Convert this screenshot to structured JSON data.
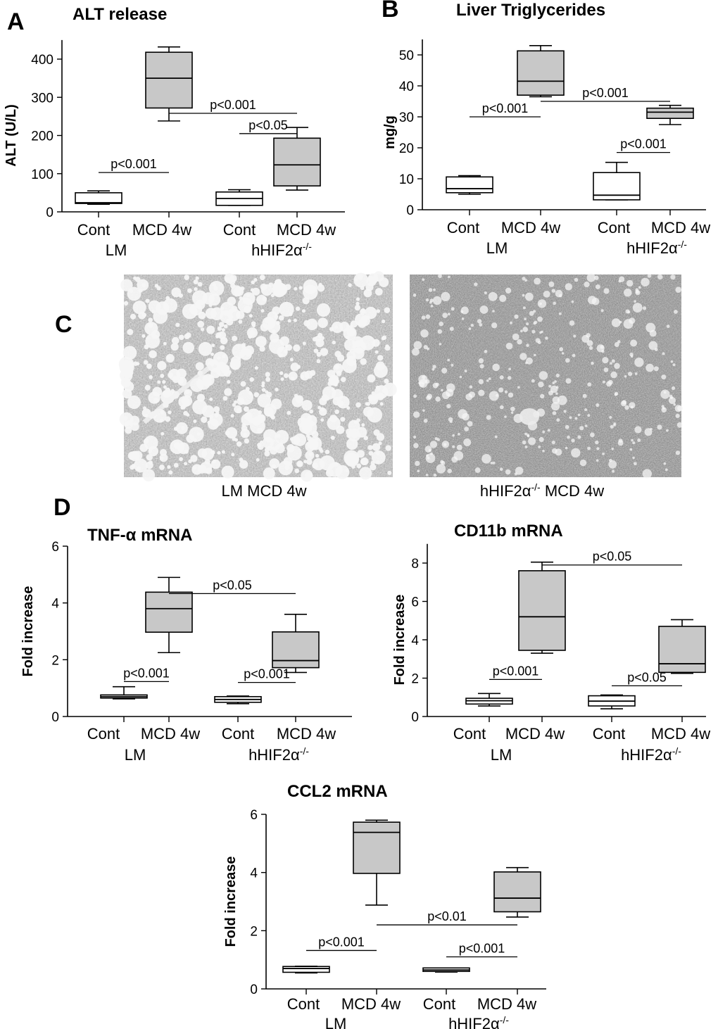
{
  "panel_labels": {
    "a": "A",
    "b": "B",
    "c": "C",
    "d": "D"
  },
  "micrographs": [
    {
      "caption": "LM MCD 4w"
    },
    {
      "caption": "hHIF2α-/- MCD 4w"
    }
  ],
  "chart_data": [
    {
      "type": "box",
      "title": "ALT release",
      "ylabel": "ALT (U/L)",
      "xlabel": "",
      "ylim": [
        0,
        450
      ],
      "yticks": [
        0,
        100,
        200,
        300,
        400
      ],
      "categories": [
        "Cont",
        "MCD 4w",
        "Cont",
        "MCD 4w"
      ],
      "groups": [
        "LM",
        "hHIF2α-/-"
      ],
      "boxes": [
        {
          "category": "Cont",
          "group": "LM",
          "fill": "#ffffff",
          "min": 20,
          "q1": 22,
          "median": 24,
          "q3": 50,
          "max": 55
        },
        {
          "category": "MCD 4w",
          "group": "LM",
          "fill": "#c8c8c8",
          "min": 238,
          "q1": 272,
          "median": 350,
          "q3": 418,
          "max": 432
        },
        {
          "category": "Cont",
          "group": "hHIF2α-/-",
          "fill": "#ffffff",
          "min": 17,
          "q1": 17,
          "median": 35,
          "q3": 52,
          "max": 58
        },
        {
          "category": "MCD 4w",
          "group": "hHIF2α-/-",
          "fill": "#c8c8c8",
          "min": 57,
          "q1": 68,
          "median": 123,
          "q3": 193,
          "max": 221
        }
      ],
      "annotations": [
        {
          "text": "p<0.001",
          "from": 0,
          "to": 1,
          "y": 103
        },
        {
          "text": "p<0.001",
          "from": 1,
          "to": 3,
          "y": 258
        },
        {
          "text": "p<0.05",
          "from": 2,
          "to": 3,
          "y": 205
        }
      ]
    },
    {
      "type": "box",
      "title": "Liver Triglycerides",
      "ylabel": "mg/g",
      "xlabel": "",
      "ylim": [
        0,
        55
      ],
      "yticks": [
        0,
        10,
        20,
        30,
        40,
        50
      ],
      "categories": [
        "Cont",
        "MCD 4w",
        "Cont",
        "MCD 4w"
      ],
      "groups": [
        "LM",
        "hHIF2α-/-"
      ],
      "boxes": [
        {
          "category": "Cont",
          "group": "LM",
          "fill": "#ffffff",
          "min": 5,
          "q1": 5.5,
          "median": 6.8,
          "q3": 10.6,
          "max": 11
        },
        {
          "category": "MCD 4w",
          "group": "LM",
          "fill": "#c8c8c8",
          "min": 36.5,
          "q1": 37,
          "median": 41.5,
          "q3": 51.3,
          "max": 53
        },
        {
          "category": "Cont",
          "group": "hHIF2α-/-",
          "fill": "#ffffff",
          "min": 3.2,
          "q1": 3.2,
          "median": 4.7,
          "q3": 12,
          "max": 15.3
        },
        {
          "category": "MCD 4w",
          "group": "hHIF2α-/-",
          "fill": "#c8c8c8",
          "min": 27.5,
          "q1": 29.5,
          "median": 31.5,
          "q3": 32.8,
          "max": 33.7
        }
      ],
      "annotations": [
        {
          "text": "p<0.001",
          "from": 0,
          "to": 1,
          "y": 30
        },
        {
          "text": "p<0.001",
          "from": 1,
          "to": 3,
          "y": 35
        },
        {
          "text": "p<0.001",
          "from": 2,
          "to": 3,
          "y": 18.5
        }
      ]
    },
    {
      "type": "box",
      "title": "TNF-α mRNA",
      "ylabel": "Fold increase",
      "xlabel": "",
      "ylim": [
        0,
        6
      ],
      "yticks": [
        0,
        2,
        4,
        6
      ],
      "categories": [
        "Cont",
        "MCD 4w",
        "Cont",
        "MCD 4w"
      ],
      "groups": [
        "LM",
        "hHIF2α-/-"
      ],
      "boxes": [
        {
          "category": "Cont",
          "group": "LM",
          "fill": "#ffffff",
          "min": 0.62,
          "q1": 0.65,
          "median": 0.7,
          "q3": 0.76,
          "max": 1.05
        },
        {
          "category": "MCD 4w",
          "group": "LM",
          "fill": "#c8c8c8",
          "min": 2.25,
          "q1": 2.97,
          "median": 3.8,
          "q3": 4.38,
          "max": 4.9
        },
        {
          "category": "Cont",
          "group": "hHIF2α-/-",
          "fill": "#ffffff",
          "min": 0.45,
          "q1": 0.5,
          "median": 0.6,
          "q3": 0.7,
          "max": 0.72
        },
        {
          "category": "MCD 4w",
          "group": "hHIF2α-/-",
          "fill": "#c8c8c8",
          "min": 1.55,
          "q1": 1.72,
          "median": 1.97,
          "q3": 2.98,
          "max": 3.6
        }
      ],
      "annotations": [
        {
          "text": "p<0.001",
          "from": 0,
          "to": 1,
          "y": 1.23
        },
        {
          "text": "p<0.05",
          "from": 1,
          "to": 3,
          "y": 4.33
        },
        {
          "text": "p<0.001",
          "from": 2,
          "to": 3,
          "y": 1.2
        }
      ]
    },
    {
      "type": "box",
      "title": "CD11b mRNA",
      "ylabel": "Fold increase",
      "xlabel": "",
      "ylim": [
        0,
        9
      ],
      "yticks": [
        0,
        2,
        4,
        6,
        8
      ],
      "categories": [
        "Cont",
        "MCD 4w",
        "Cont",
        "MCD 4w"
      ],
      "groups": [
        "LM",
        "hHIF2α-/-"
      ],
      "boxes": [
        {
          "category": "Cont",
          "group": "LM",
          "fill": "#ffffff",
          "min": 0.55,
          "q1": 0.65,
          "median": 0.82,
          "q3": 0.95,
          "max": 1.2
        },
        {
          "category": "MCD 4w",
          "group": "LM",
          "fill": "#c8c8c8",
          "min": 3.3,
          "q1": 3.45,
          "median": 5.2,
          "q3": 7.6,
          "max": 8.05
        },
        {
          "category": "Cont",
          "group": "hHIF2α-/-",
          "fill": "#ffffff",
          "min": 0.4,
          "q1": 0.55,
          "median": 0.8,
          "q3": 1.08,
          "max": 1.12
        },
        {
          "category": "MCD 4w",
          "group": "hHIF2α-/-",
          "fill": "#c8c8c8",
          "min": 2.25,
          "q1": 2.3,
          "median": 2.75,
          "q3": 4.7,
          "max": 5.05
        }
      ],
      "annotations": [
        {
          "text": "p<0.001",
          "from": 0,
          "to": 1,
          "y": 1.93
        },
        {
          "text": "p<0.05",
          "from": 1,
          "to": 3,
          "y": 7.9
        },
        {
          "text": "p<0.05",
          "from": 2,
          "to": 3,
          "y": 1.6
        }
      ]
    },
    {
      "type": "box",
      "title": "CCL2 mRNA",
      "ylabel": "Fold increase",
      "xlabel": "",
      "ylim": [
        0,
        6
      ],
      "yticks": [
        0,
        2,
        4,
        6
      ],
      "categories": [
        "Cont",
        "MCD 4w",
        "Cont",
        "MCD 4w"
      ],
      "groups": [
        "LM",
        "hHIF2α-/-"
      ],
      "boxes": [
        {
          "category": "Cont",
          "group": "LM",
          "fill": "#ffffff",
          "min": 0.55,
          "q1": 0.57,
          "median": 0.7,
          "q3": 0.77,
          "max": 0.78
        },
        {
          "category": "MCD 4w",
          "group": "LM",
          "fill": "#c8c8c8",
          "min": 2.88,
          "q1": 3.97,
          "median": 5.38,
          "q3": 5.73,
          "max": 5.8
        },
        {
          "category": "Cont",
          "group": "hHIF2α-/-",
          "fill": "#ffffff",
          "min": 0.58,
          "q1": 0.6,
          "median": 0.65,
          "q3": 0.72,
          "max": 0.72
        },
        {
          "category": "MCD 4w",
          "group": "hHIF2α-/-",
          "fill": "#c8c8c8",
          "min": 2.47,
          "q1": 2.65,
          "median": 3.12,
          "q3": 4.02,
          "max": 4.17
        }
      ],
      "annotations": [
        {
          "text": "p<0.001",
          "from": 0,
          "to": 1,
          "y": 1.32
        },
        {
          "text": "p<0.01",
          "from": 1,
          "to": 3,
          "y": 2.2
        },
        {
          "text": "p<0.001",
          "from": 2,
          "to": 3,
          "y": 1.1
        }
      ]
    }
  ]
}
